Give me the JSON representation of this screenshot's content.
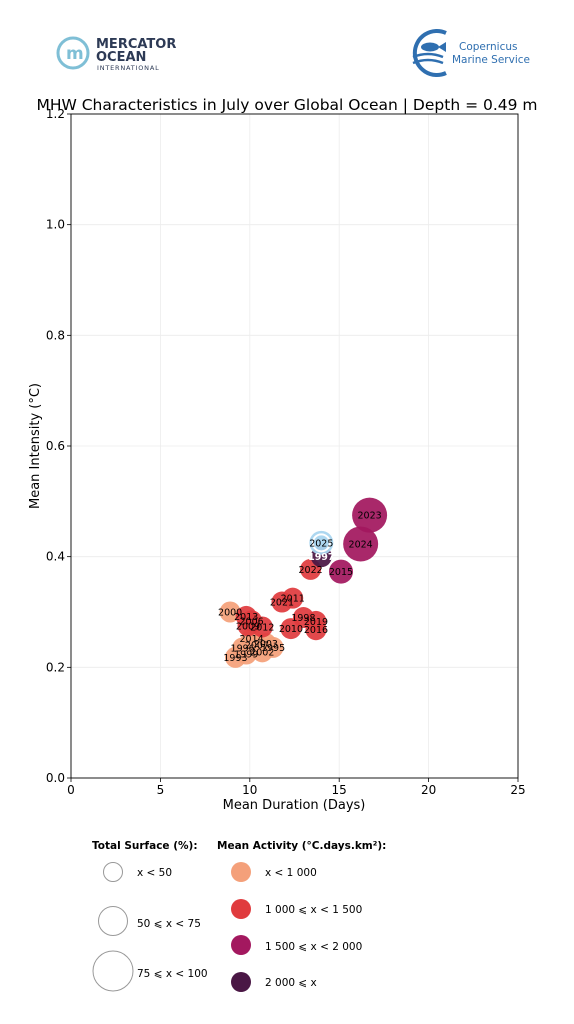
{
  "logos": {
    "mercator": {
      "line1": "MERCATOR",
      "line2": "OCEAN",
      "line3": "INTERNATIONAL",
      "color": "#2d3a55",
      "mark_color": "#7fbfd6"
    },
    "copernicus": {
      "line1": "Copernicus",
      "line2": "Marine Service",
      "color": "#2f6fb0"
    }
  },
  "chart_data": {
    "type": "scatter",
    "title": "MHW Characteristics in July over Global Ocean | Depth = 0.49 m",
    "xlabel": "Mean Duration (Days)",
    "ylabel": "Mean Intensity (°C)",
    "xlim": [
      0,
      25
    ],
    "ylim": [
      0,
      1.2
    ],
    "xticks": [
      0,
      5,
      10,
      15,
      20,
      25
    ],
    "yticks": [
      0.0,
      0.2,
      0.4,
      0.6,
      0.8,
      1.0,
      1.2
    ],
    "xtick_labels": [
      "0",
      "5",
      "10",
      "15",
      "20",
      "25"
    ],
    "ytick_labels": [
      "0.0",
      "0.2",
      "0.4",
      "0.6",
      "0.8",
      "1.0",
      "1.2"
    ],
    "grid": true,
    "colors": {
      "lt1000": "#f4a07a",
      "1000to1500": "#e03b3e",
      "1500to2000": "#a3185f",
      "gte2000": "#4a1745",
      "surface_lt50": "#f4a07a"
    },
    "points": [
      {
        "year": "1993",
        "x": 9.2,
        "y": 0.218,
        "size": "s50",
        "activity": "lt1000"
      },
      {
        "year": "1996",
        "x": 9.6,
        "y": 0.235,
        "size": "s50",
        "activity": "lt1000"
      },
      {
        "year": "1999",
        "x": 9.8,
        "y": 0.224,
        "size": "s50",
        "activity": "lt1000"
      },
      {
        "year": "2002",
        "x": 10.7,
        "y": 0.228,
        "size": "s50",
        "activity": "lt1000"
      },
      {
        "year": "1995",
        "x": 11.3,
        "y": 0.236,
        "size": "s50",
        "activity": "lt1000"
      },
      {
        "year": "2007",
        "x": 10.4,
        "y": 0.24,
        "size": "s50",
        "activity": "lt1000"
      },
      {
        "year": "2003",
        "x": 10.9,
        "y": 0.243,
        "size": "s50",
        "activity": "lt1000"
      },
      {
        "year": "2014",
        "x": 10.1,
        "y": 0.252,
        "size": "s50",
        "activity": "lt1000"
      },
      {
        "year": "2000",
        "x": 8.9,
        "y": 0.3,
        "size": "s50",
        "activity": "lt1000"
      },
      {
        "year": "2013",
        "x": 9.8,
        "y": 0.292,
        "size": "s50",
        "activity": "1000to1500"
      },
      {
        "year": "2006",
        "x": 10.1,
        "y": 0.284,
        "size": "s50",
        "activity": "1000to1500"
      },
      {
        "year": "2009",
        "x": 9.9,
        "y": 0.275,
        "size": "s50",
        "activity": "1000to1500"
      },
      {
        "year": "2012",
        "x": 10.7,
        "y": 0.273,
        "size": "s50",
        "activity": "1000to1500"
      },
      {
        "year": "2021",
        "x": 11.8,
        "y": 0.318,
        "size": "s50",
        "activity": "1000to1500"
      },
      {
        "year": "2011",
        "x": 12.4,
        "y": 0.325,
        "size": "s50",
        "activity": "1000to1500"
      },
      {
        "year": "1998",
        "x": 13.0,
        "y": 0.29,
        "size": "s50",
        "activity": "1000to1500"
      },
      {
        "year": "2019",
        "x": 13.7,
        "y": 0.283,
        "size": "s50",
        "activity": "1000to1500"
      },
      {
        "year": "2010",
        "x": 12.3,
        "y": 0.27,
        "size": "s50",
        "activity": "1000to1500"
      },
      {
        "year": "2016",
        "x": 13.7,
        "y": 0.268,
        "size": "s50",
        "activity": "1000to1500"
      },
      {
        "year": "2022",
        "x": 13.4,
        "y": 0.377,
        "size": "s50",
        "activity": "1000to1500"
      },
      {
        "year": "1997",
        "x": 14.0,
        "y": 0.4,
        "size": "s50",
        "activity": "gte2000"
      },
      {
        "year": "2025",
        "x": 14.0,
        "y": 0.425,
        "size": "s50",
        "activity": "surface_lt50"
      },
      {
        "year": "2015",
        "x": 15.1,
        "y": 0.373,
        "size": "s75",
        "activity": "1500to2000"
      },
      {
        "year": "2024",
        "x": 16.2,
        "y": 0.423,
        "size": "s100",
        "activity": "1500to2000"
      },
      {
        "year": "2023",
        "x": 16.7,
        "y": 0.475,
        "size": "s100",
        "activity": "1500to2000"
      }
    ]
  },
  "legend": {
    "surface_title": "Total Surface (%):",
    "surface_items": [
      "x < 50",
      "50 ⩽ x < 75",
      "75 ⩽ x < 100"
    ],
    "activity_title": "Mean Activity (°C.days.km²):",
    "activity_items": [
      {
        "label": "x < 1 000",
        "color": "#f4a07a"
      },
      {
        "label": "1 000 ⩽ x < 1 500",
        "color": "#e03b3e"
      },
      {
        "label": "1 500 ⩽ x < 2 000",
        "color": "#a3185f"
      },
      {
        "label": "2 000 ⩽ x",
        "color": "#4a1745"
      }
    ]
  }
}
